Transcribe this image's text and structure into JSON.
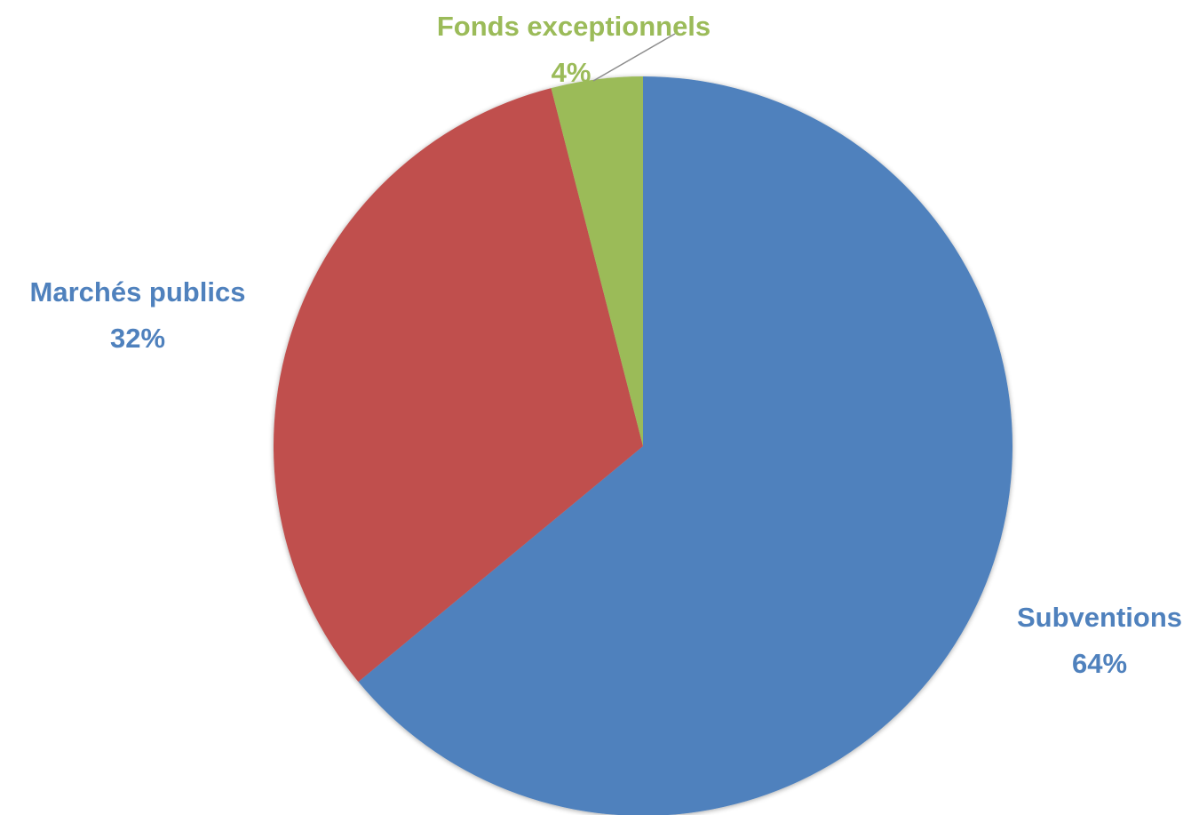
{
  "chart_data": {
    "type": "pie",
    "title": "",
    "start_angle_deg": 0,
    "direction": "clockwise",
    "slices": [
      {
        "label": "Subventions",
        "value": 64,
        "value_label": "64%",
        "color": "#4F81BD"
      },
      {
        "label": "Marchés publics",
        "value": 32,
        "value_label": "32%",
        "color": "#C0504D"
      },
      {
        "label": "Fonds exceptionnels",
        "value": 4,
        "value_label": "4%",
        "color": "#9BBB59"
      }
    ]
  }
}
